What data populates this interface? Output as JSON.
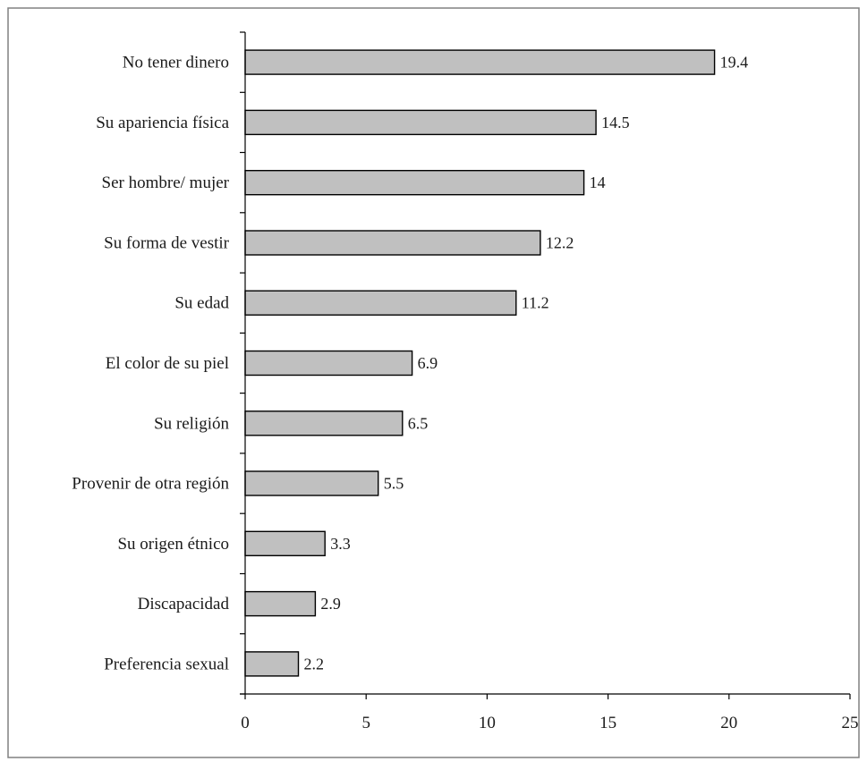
{
  "chart_data": {
    "type": "bar",
    "orientation": "horizontal",
    "title": "",
    "xlabel": "",
    "ylabel": "",
    "categories": [
      "No tener dinero",
      "Su apariencia física",
      "Ser hombre/ mujer",
      "Su forma de vestir",
      "Su edad",
      "El color de su piel",
      "Su religión",
      "Provenir de otra región",
      "Su origen étnico",
      "Discapacidad",
      "Preferencia sexual"
    ],
    "values": [
      19.4,
      14.5,
      14,
      12.2,
      11.2,
      6.9,
      6.5,
      5.5,
      3.3,
      2.9,
      2.2
    ],
    "value_labels": [
      "19.4",
      "14.5",
      "14",
      "12.2",
      "11.2",
      "6.9",
      "6.5",
      "5.5",
      "3.3",
      "2.9",
      "2.2"
    ],
    "xlim": [
      0,
      25
    ],
    "xticks": [
      0,
      5,
      10,
      15,
      20,
      25
    ],
    "grid": false,
    "legend": "none",
    "bar_color": "#c0c0c0",
    "bar_edge_color": "#000000",
    "frame_color": "#808080"
  }
}
